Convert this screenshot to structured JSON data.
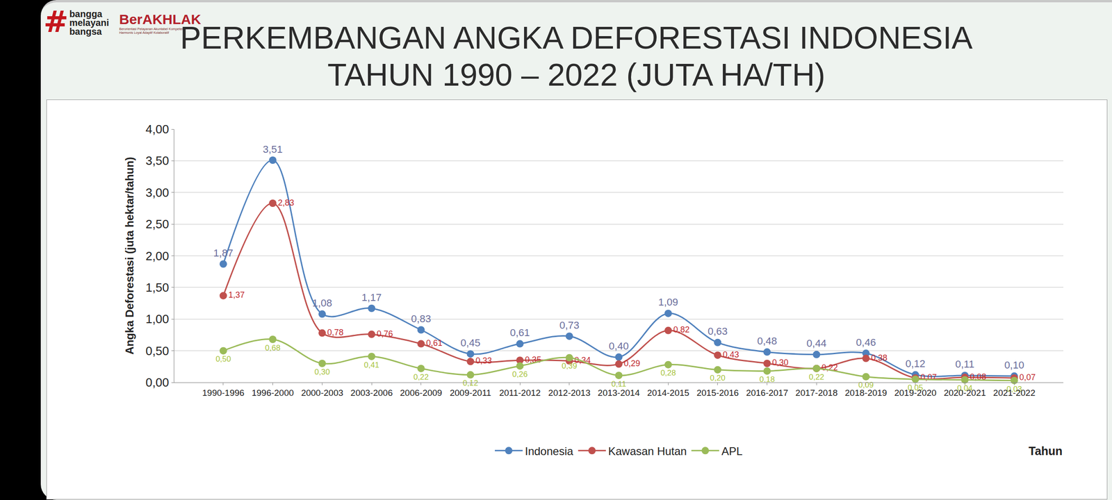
{
  "header": {
    "hashtag_logo": [
      "#",
      "bangga",
      "melayani",
      "bangsa"
    ],
    "brand": "BerAKHLAK",
    "brand_tagline": "Berorientasi Pelayanan Akuntabel Kompeten Harmonis Loyal Adaptif Kolaboratif"
  },
  "chart_data": {
    "type": "line",
    "title": "PERKEMBANGAN ANGKA DEFORESTASI INDONESIA\nTAHUN 1990 – 2022 (JUTA HA/TH)",
    "x_label": "Tahun",
    "y_label": "Angka Deforestasi (juta hektar/tahun)",
    "categories": [
      "1990-1996",
      "1996-2000",
      "2000-2003",
      "2003-2006",
      "2006-2009",
      "2009-2011",
      "2011-2012",
      "2012-2013",
      "2013-2014",
      "2014-2015",
      "2015-2016",
      "2016-2017",
      "2017-2018",
      "2018-2019",
      "2019-2020",
      "2020-2021",
      "2021-2022"
    ],
    "series": [
      {
        "name": "Indonesia",
        "color": "#4f81bd",
        "values": [
          1.87,
          3.51,
          1.08,
          1.17,
          0.83,
          0.45,
          0.61,
          0.73,
          0.4,
          1.09,
          0.63,
          0.48,
          0.44,
          0.46,
          0.12,
          0.11,
          0.1
        ],
        "value_labels": [
          "1,87",
          "3,51",
          "1,08",
          "1,17",
          "0,83",
          "0,45",
          "0,61",
          "0,73",
          "0,40",
          "1,09",
          "0,63",
          "0,48",
          "0,44",
          "0,46",
          "0,12",
          "0,11",
          "0,10"
        ]
      },
      {
        "name": "Kawasan Hutan",
        "color": "#c0504d",
        "values": [
          1.37,
          2.83,
          0.78,
          0.76,
          0.61,
          0.33,
          0.35,
          0.34,
          0.29,
          0.82,
          0.43,
          0.3,
          0.22,
          0.38,
          0.07,
          0.08,
          0.07
        ],
        "value_labels": [
          "1,37",
          "2,83",
          "0,78",
          "0,76",
          "0,61",
          "0,33",
          "0,35",
          "0,34",
          "0,29",
          "0,82",
          "0,43",
          "0,30",
          "0,22",
          "0,38",
          "0,07",
          "0,08",
          "0,07"
        ]
      },
      {
        "name": "APL",
        "color": "#9bbb59",
        "values": [
          0.5,
          0.68,
          0.3,
          0.41,
          0.22,
          0.12,
          0.26,
          0.39,
          0.11,
          0.28,
          0.2,
          0.18,
          0.22,
          0.09,
          0.05,
          0.04,
          0.03
        ],
        "value_labels": [
          "0,50",
          "0,68",
          "0,30",
          "0,41",
          "0,22",
          "0,12",
          "0,26",
          "0,39",
          "0,11",
          "0,28",
          "0,20",
          "0,18",
          "0,22",
          "0,09",
          "0,05",
          "0,04",
          "0,03"
        ]
      }
    ],
    "ylim": [
      0,
      4
    ],
    "yticks": [
      {
        "value": 0,
        "label": "0,00"
      },
      {
        "value": 0.5,
        "label": "0,50"
      },
      {
        "value": 1,
        "label": "1,00"
      },
      {
        "value": 1.5,
        "label": "1,50"
      },
      {
        "value": 2,
        "label": "2,00"
      },
      {
        "value": 2.5,
        "label": "2,50"
      },
      {
        "value": 3,
        "label": "3,00"
      },
      {
        "value": 3.5,
        "label": "3,50"
      },
      {
        "value": 4,
        "label": "4,00"
      }
    ],
    "grid": true,
    "legend": "bottom",
    "data_labels": true,
    "marker": "circle",
    "line_style": "spline"
  }
}
